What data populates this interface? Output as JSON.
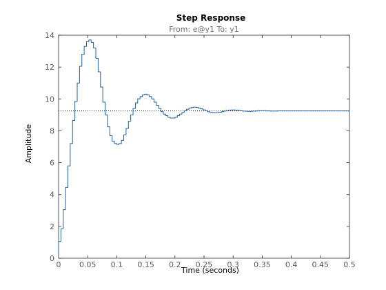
{
  "chart_data": {
    "type": "line",
    "title": "Step Response",
    "subtitle": "From: e@y1  To: y1",
    "xlabel": "Time (seconds)",
    "ylabel": "Amplitude",
    "xlim": [
      0,
      0.5
    ],
    "ylim": [
      0,
      14
    ],
    "xticks": [
      0,
      0.05,
      0.1,
      0.15,
      0.2,
      0.25,
      0.3,
      0.35,
      0.4,
      0.45,
      0.5
    ],
    "xtick_labels": [
      "0",
      "0.05",
      "0.1",
      "0.15",
      "0.2",
      "0.25",
      "0.3",
      "0.35",
      "0.4",
      "0.45",
      "0.5"
    ],
    "yticks": [
      0,
      2,
      4,
      6,
      8,
      10,
      12,
      14
    ],
    "ytick_labels": [
      "0",
      "2",
      "4",
      "6",
      "8",
      "10",
      "12",
      "14"
    ],
    "grid": false,
    "step": true,
    "steady_state": 9.25,
    "line_color": "#1f5f9f",
    "steady_color": "#000000",
    "series": [
      {
        "x": [
          0,
          0.004,
          0.008,
          0.012,
          0.016,
          0.02,
          0.024,
          0.028,
          0.032,
          0.036,
          0.04,
          0.044,
          0.048,
          0.052,
          0.056,
          0.06,
          0.064,
          0.068,
          0.072,
          0.076,
          0.08,
          0.084,
          0.088,
          0.092,
          0.096,
          0.1,
          0.104,
          0.108,
          0.112,
          0.116,
          0.12,
          0.124,
          0.128,
          0.132,
          0.136,
          0.14,
          0.144,
          0.148,
          0.152,
          0.156,
          0.16,
          0.164,
          0.168,
          0.172,
          0.176,
          0.18,
          0.184,
          0.188,
          0.192,
          0.196,
          0.2,
          0.204,
          0.208,
          0.212,
          0.216,
          0.22,
          0.224,
          0.228,
          0.232,
          0.236,
          0.24,
          0.244,
          0.248,
          0.252,
          0.256,
          0.26,
          0.264,
          0.268,
          0.272,
          0.276,
          0.28,
          0.284,
          0.288,
          0.292,
          0.296,
          0.3,
          0.304,
          0.308,
          0.312,
          0.316,
          0.32,
          0.324,
          0.328,
          0.332,
          0.336,
          0.34,
          0.344,
          0.348,
          0.352,
          0.356,
          0.36,
          0.364,
          0.368,
          0.372,
          0.376,
          0.38,
          0.384,
          0.388,
          0.392,
          0.396,
          0.4,
          0.404,
          0.408,
          0.412,
          0.416,
          0.42,
          0.424,
          0.428,
          0.432,
          0.436,
          0.44,
          0.444,
          0.448,
          0.452,
          0.456,
          0.46,
          0.464,
          0.468,
          0.472,
          0.476,
          0.48,
          0.484,
          0.488,
          0.492,
          0.496
        ],
        "y": [
          1.05,
          1.85,
          3.05,
          4.45,
          5.8,
          7.2,
          8.65,
          9.85,
          11.0,
          12.05,
          12.8,
          13.3,
          13.6,
          13.7,
          13.55,
          13.2,
          12.55,
          11.7,
          10.75,
          9.8,
          9.0,
          8.25,
          7.7,
          7.35,
          7.2,
          7.15,
          7.2,
          7.4,
          7.75,
          8.15,
          8.6,
          9.0,
          9.4,
          9.75,
          10.0,
          10.15,
          10.25,
          10.3,
          10.25,
          10.15,
          10.0,
          9.8,
          9.6,
          9.4,
          9.2,
          9.05,
          8.95,
          8.85,
          8.8,
          8.8,
          8.85,
          8.95,
          9.05,
          9.15,
          9.25,
          9.35,
          9.42,
          9.46,
          9.48,
          9.47,
          9.43,
          9.38,
          9.32,
          9.26,
          9.2,
          9.16,
          9.14,
          9.13,
          9.14,
          9.17,
          9.2,
          9.24,
          9.27,
          9.3,
          9.31,
          9.31,
          9.3,
          9.28,
          9.26,
          9.24,
          9.23,
          9.22,
          9.22,
          9.23,
          9.24,
          9.25,
          9.26,
          9.26,
          9.26,
          9.25,
          9.25,
          9.24,
          9.24,
          9.24,
          9.25,
          9.25,
          9.25,
          9.25,
          9.25,
          9.25,
          9.25,
          9.25,
          9.25,
          9.25,
          9.25,
          9.25,
          9.25,
          9.25,
          9.25,
          9.25,
          9.25,
          9.25,
          9.25,
          9.25,
          9.25,
          9.25,
          9.25,
          9.25,
          9.25,
          9.25,
          9.25,
          9.25,
          9.25,
          9.25,
          9.25
        ]
      }
    ]
  }
}
